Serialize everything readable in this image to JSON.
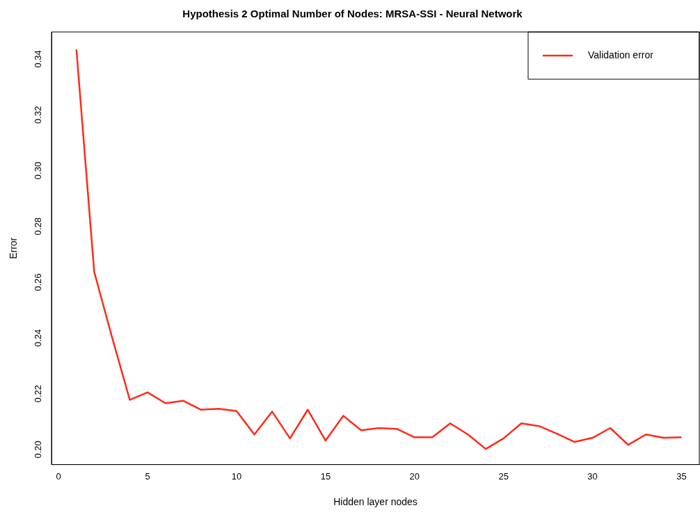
{
  "chart_data": {
    "type": "line",
    "title": "Hypothesis 2 Optimal Number of Nodes: MRSA-SSI - Neural Network",
    "xlabel": "Hidden layer nodes",
    "ylabel": "Error",
    "x": [
      1,
      2,
      3,
      4,
      5,
      6,
      7,
      8,
      9,
      10,
      11,
      12,
      13,
      14,
      15,
      16,
      17,
      18,
      19,
      20,
      21,
      22,
      23,
      24,
      25,
      26,
      27,
      28,
      29,
      30,
      31,
      32,
      33,
      34,
      35
    ],
    "series": [
      {
        "name": "Validation error",
        "color": "#ff2a1a",
        "values": [
          0.3435,
          0.2637,
          0.2403,
          0.2178,
          0.2205,
          0.2166,
          0.2175,
          0.2143,
          0.2146,
          0.2138,
          0.2054,
          0.2136,
          0.204,
          0.2143,
          0.2032,
          0.2121,
          0.2069,
          0.2077,
          0.2074,
          0.2044,
          0.2044,
          0.2094,
          0.2054,
          0.2002,
          0.204,
          0.2094,
          0.2084,
          0.2057,
          0.2027,
          0.2042,
          0.2077,
          0.2017,
          0.2054,
          0.2042,
          0.2044
        ]
      }
    ],
    "xlim": [
      -0.4,
      36
    ],
    "ylim": [
      0.1946,
      0.3497
    ],
    "xticks": [
      0,
      5,
      10,
      15,
      20,
      25,
      30,
      35
    ],
    "yticks": [
      {
        "value": 0.2,
        "label": "0.20"
      },
      {
        "value": 0.22,
        "label": "0.22"
      },
      {
        "value": 0.24,
        "label": "0.24"
      },
      {
        "value": 0.26,
        "label": "0.26"
      },
      {
        "value": 0.28,
        "label": "0.28"
      },
      {
        "value": 0.3,
        "label": "0.30"
      },
      {
        "value": 0.32,
        "label": "0.32"
      },
      {
        "value": 0.34,
        "label": "0.34"
      }
    ],
    "grid": false,
    "legend": "top right",
    "marker": "none",
    "line_style": "solid"
  }
}
